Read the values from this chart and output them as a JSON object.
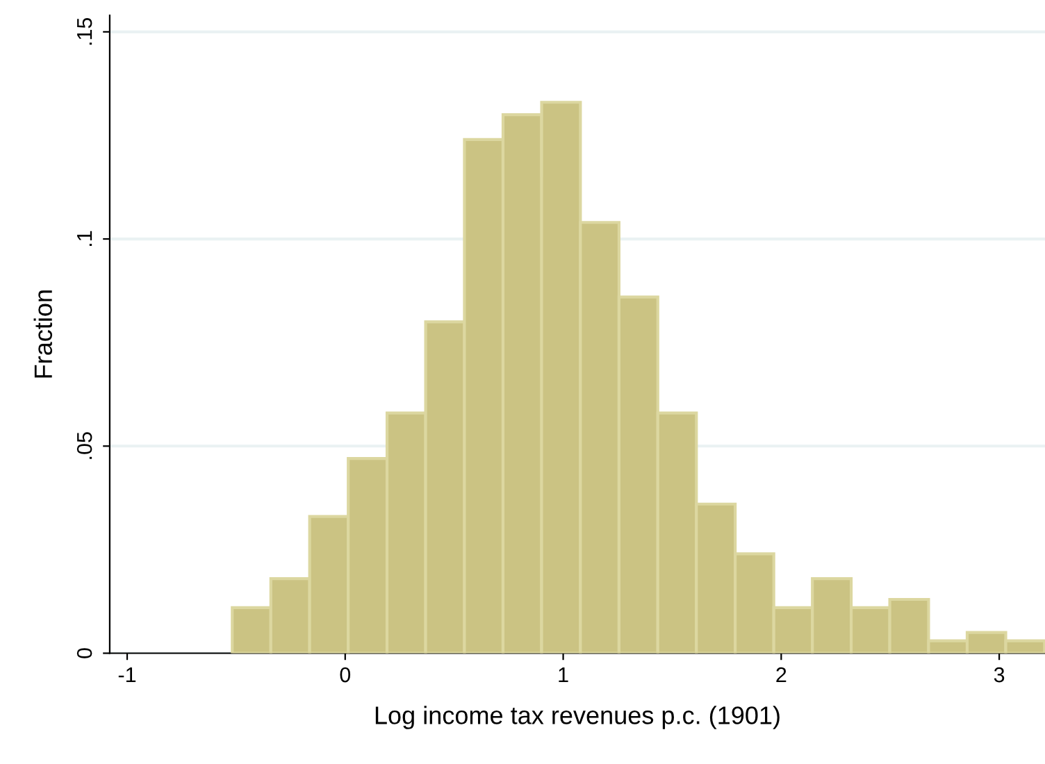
{
  "chart_data": {
    "type": "histogram",
    "xlabel": "Log income tax revenues p.c. (1901)",
    "ylabel": "Fraction",
    "bins": [
      -0.518,
      -0.341,
      -0.163,
      0.014,
      0.192,
      0.369,
      0.547,
      0.724,
      0.901,
      1.079,
      1.256,
      1.434,
      1.611,
      1.789,
      1.966,
      2.143,
      2.321,
      2.498,
      2.676,
      2.853,
      3.03,
      3.208
    ],
    "values": [
      0.011,
      0.018,
      0.033,
      0.047,
      0.058,
      0.08,
      0.124,
      0.13,
      0.133,
      0.104,
      0.086,
      0.058,
      0.036,
      0.024,
      0.011,
      0.018,
      0.011,
      0.013,
      0.003,
      0.005,
      0.003
    ],
    "color": "#cbc383",
    "xlim": [
      -1.08,
      3.21
    ],
    "xticks": [
      {
        "value": -1,
        "label": "-1"
      },
      0,
      1,
      2,
      3
    ],
    "ylim": [
      0,
      0.154
    ],
    "yticks": [
      {
        "value": 0,
        "label": "0"
      },
      {
        "value": 0.05,
        "label": ".05"
      },
      {
        "value": 0.1,
        "label": ".1"
      },
      {
        "value": 0.15,
        "label": ".15"
      }
    ],
    "grid": "y"
  }
}
